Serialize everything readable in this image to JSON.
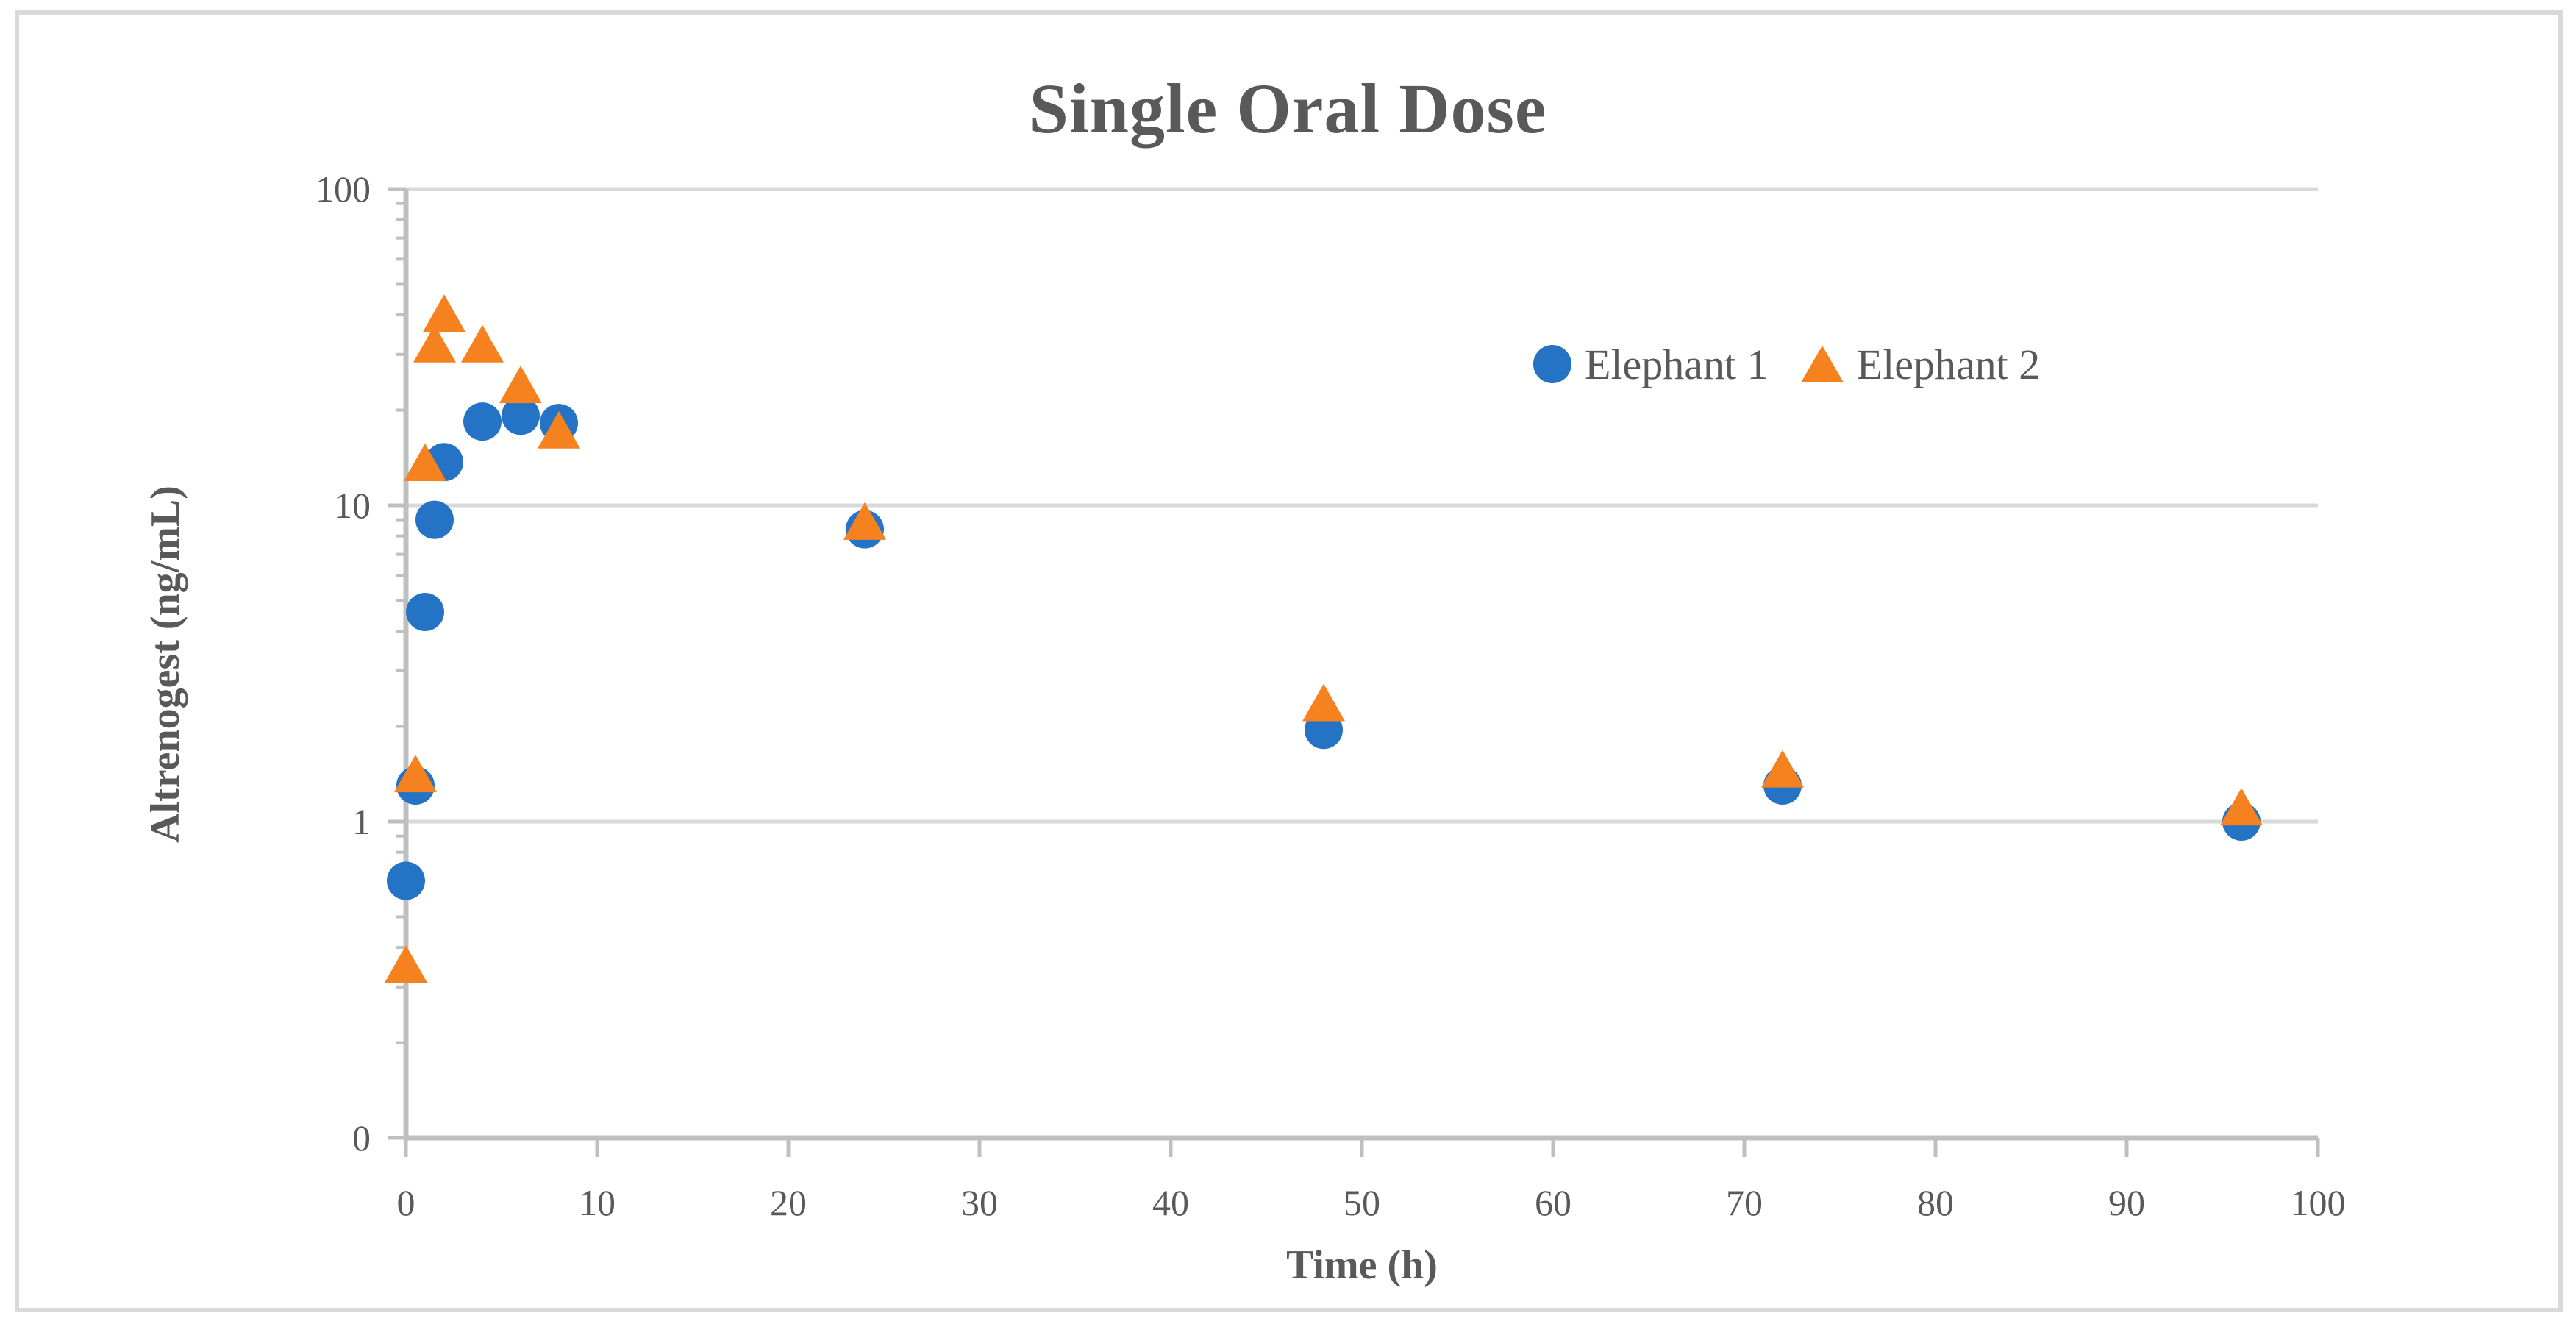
{
  "figure": {
    "title": "Single Oral Dose"
  },
  "legend": {
    "items": [
      {
        "label": "Elephant 1",
        "marker": "circle-icon",
        "color": "#2473C4"
      },
      {
        "label": "Elephant 2",
        "marker": "triangle-icon",
        "color": "#F5821F"
      }
    ]
  },
  "chart_data": {
    "type": "scatter",
    "title": "Single Oral Dose",
    "xlabel": "Time (h)",
    "ylabel": "Altrenogest (ng/mL)",
    "x_axis": {
      "min": 0,
      "max": 100,
      "tick_step": 10,
      "tick_values": [
        0,
        10,
        20,
        30,
        40,
        50,
        60,
        70,
        80,
        90,
        100
      ],
      "tick_labels": [
        "0",
        "10",
        "20",
        "30",
        "40",
        "50",
        "60",
        "70",
        "80",
        "90",
        "100"
      ]
    },
    "y_axis": {
      "scale": "log",
      "top_value": 100,
      "bottom_value": 0.1,
      "tick_values": [
        100,
        10,
        1,
        0.1
      ],
      "tick_labels": [
        "100",
        "10",
        "1",
        "0"
      ],
      "minor_ticks": true,
      "gridlines": "horizontal"
    },
    "legend_position": "inside-top-right",
    "series": [
      {
        "name": "Elephant 1",
        "marker": "circle",
        "color": "#2473C4",
        "points": [
          [
            0,
            0.65
          ],
          [
            0.5,
            1.3
          ],
          [
            1,
            4.6
          ],
          [
            1.5,
            9.0
          ],
          [
            2,
            13.7
          ],
          [
            4,
            18.4
          ],
          [
            6,
            19.2
          ],
          [
            8,
            18.2
          ],
          [
            24,
            8.4
          ],
          [
            48,
            1.95
          ],
          [
            72,
            1.3
          ],
          [
            96,
            1.0
          ]
        ]
      },
      {
        "name": "Elephant 2",
        "marker": "triangle",
        "color": "#F5821F",
        "points": [
          [
            0,
            0.35
          ],
          [
            0.5,
            1.4
          ],
          [
            1,
            13.5
          ],
          [
            1.5,
            32
          ],
          [
            2,
            40
          ],
          [
            4,
            32
          ],
          [
            6,
            23.8
          ],
          [
            8,
            17.1
          ],
          [
            24,
            8.8
          ],
          [
            48,
            2.35
          ],
          [
            72,
            1.45
          ],
          [
            96,
            1.1
          ]
        ]
      }
    ]
  }
}
